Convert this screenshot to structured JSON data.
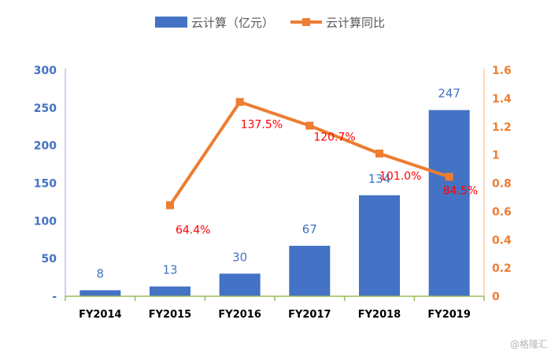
{
  "watermark": "@格隆汇",
  "colors": {
    "bar": "#4472c4",
    "bar_label": "#4472c4",
    "line": "#ed7d31",
    "line_label": "#ff0000",
    "left_axis": "#8faadc",
    "right_axis": "#f4b183",
    "x_axis": "#9bbb59",
    "left_tick": "#4472c4",
    "right_tick": "#ed7d31"
  },
  "chart_data": {
    "type": "bar",
    "categories": [
      "FY2014",
      "FY2015",
      "FY2016",
      "FY2017",
      "FY2018",
      "FY2019"
    ],
    "series": [
      {
        "name": "云计算（亿元）",
        "type": "bar",
        "axis": "left",
        "values": [
          8,
          13,
          30,
          67,
          134,
          247
        ],
        "labels": [
          "8",
          "13",
          "30",
          "67",
          "134",
          "247"
        ]
      },
      {
        "name": "云计算同比",
        "type": "line",
        "axis": "right",
        "values": [
          null,
          0.644,
          1.375,
          1.207,
          1.01,
          0.845
        ],
        "labels": [
          null,
          "64.4%",
          "137.5%",
          "120.7%",
          "101.0%",
          "84.5%"
        ]
      }
    ],
    "y_left": {
      "range": [
        0,
        300
      ],
      "ticks": [
        0,
        50,
        100,
        150,
        200,
        250,
        300
      ],
      "tick_labels": [
        "-",
        "50",
        "100",
        "150",
        "200",
        "250",
        "300"
      ]
    },
    "y_right": {
      "range": [
        0,
        1.6
      ],
      "ticks": [
        0,
        0.2,
        0.4,
        0.6,
        0.8,
        1,
        1.2,
        1.4,
        1.6
      ],
      "tick_labels": [
        "0",
        "0.2",
        "0.4",
        "0.6",
        "0.8",
        "1",
        "1.2",
        "1.4",
        "1.6"
      ]
    },
    "legend_position": "top",
    "grid": false
  }
}
